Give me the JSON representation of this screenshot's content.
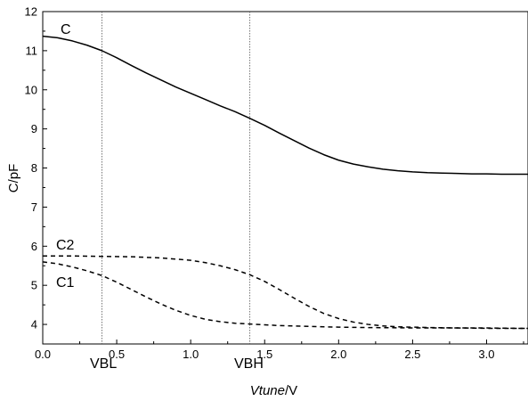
{
  "chart_data": {
    "type": "line",
    "xlabel_italic": "Vtune",
    "xlabel_unit": "/V",
    "ylabel": "C/pF",
    "xlim": [
      0,
      3.28
    ],
    "ylim": [
      3.5,
      12
    ],
    "x_ticks": [
      0.0,
      0.5,
      1.0,
      1.5,
      2.0,
      2.5,
      3.0
    ],
    "x_tick_labels": [
      "0.0",
      "0.5",
      "1.0",
      "1.5",
      "2.0",
      "2.5",
      "3.0"
    ],
    "y_ticks": [
      4,
      5,
      6,
      7,
      8,
      9,
      10,
      11,
      12
    ],
    "y_tick_labels": [
      "4",
      "5",
      "6",
      "7",
      "8",
      "9",
      "10",
      "11",
      "12"
    ],
    "grid": false,
    "vertical_markers": [
      {
        "label": "VBL",
        "x": 0.4
      },
      {
        "label": "VBH",
        "x": 1.4
      }
    ],
    "series": [
      {
        "name": "C",
        "style": "solid",
        "x": [
          0.0,
          0.1,
          0.2,
          0.3,
          0.4,
          0.5,
          0.6,
          0.7,
          0.8,
          0.9,
          1.0,
          1.1,
          1.2,
          1.3,
          1.4,
          1.5,
          1.6,
          1.7,
          1.8,
          1.9,
          2.0,
          2.1,
          2.2,
          2.3,
          2.4,
          2.5,
          2.6,
          2.7,
          2.8,
          2.9,
          3.0,
          3.1,
          3.2,
          3.28
        ],
        "values": [
          11.37,
          11.33,
          11.25,
          11.14,
          11.0,
          10.82,
          10.62,
          10.43,
          10.25,
          10.07,
          9.91,
          9.75,
          9.59,
          9.44,
          9.27,
          9.09,
          8.89,
          8.7,
          8.51,
          8.34,
          8.2,
          8.1,
          8.03,
          7.97,
          7.93,
          7.9,
          7.88,
          7.87,
          7.86,
          7.85,
          7.85,
          7.84,
          7.84,
          7.84
        ]
      },
      {
        "name": "C2",
        "style": "dashed",
        "x": [
          0.0,
          0.2,
          0.4,
          0.6,
          0.8,
          1.0,
          1.1,
          1.2,
          1.3,
          1.4,
          1.5,
          1.6,
          1.7,
          1.8,
          1.9,
          2.0,
          2.1,
          2.2,
          2.3,
          2.4,
          2.5,
          2.6,
          2.8,
          3.0,
          3.2,
          3.28
        ],
        "values": [
          5.75,
          5.75,
          5.74,
          5.73,
          5.7,
          5.64,
          5.58,
          5.5,
          5.4,
          5.27,
          5.1,
          4.89,
          4.67,
          4.46,
          4.28,
          4.15,
          4.06,
          4.0,
          3.96,
          3.94,
          3.93,
          3.92,
          3.91,
          3.91,
          3.9,
          3.9
        ]
      },
      {
        "name": "C1",
        "style": "dashed",
        "x": [
          0.0,
          0.1,
          0.2,
          0.3,
          0.4,
          0.5,
          0.6,
          0.7,
          0.8,
          0.9,
          1.0,
          1.1,
          1.2,
          1.3,
          1.4,
          1.5,
          1.6,
          1.8,
          2.0,
          2.2,
          2.5,
          2.8,
          3.0,
          3.2,
          3.28
        ],
        "values": [
          5.6,
          5.55,
          5.47,
          5.37,
          5.25,
          5.08,
          4.89,
          4.7,
          4.52,
          4.36,
          4.23,
          4.13,
          4.07,
          4.03,
          4.01,
          3.99,
          3.97,
          3.95,
          3.93,
          3.92,
          3.91,
          3.91,
          3.9,
          3.9,
          3.9
        ]
      }
    ]
  }
}
